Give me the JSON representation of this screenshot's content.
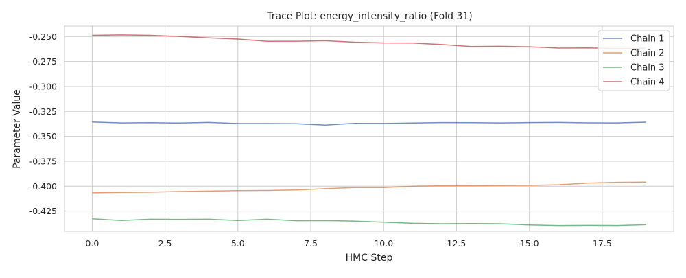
{
  "chart_data": {
    "type": "line",
    "title": "Trace Plot: energy_intensity_ratio (Fold 31)",
    "xlabel": "HMC Step",
    "ylabel": "Parameter Value",
    "xlim": [
      -0.95,
      19.95
    ],
    "ylim": [
      -0.4452,
      -0.2395
    ],
    "x_ticks": [
      0.0,
      2.5,
      5.0,
      7.5,
      10.0,
      12.5,
      15.0,
      17.5
    ],
    "x_tick_labels": [
      "0.0",
      "2.5",
      "5.0",
      "7.5",
      "10.0",
      "12.5",
      "15.0",
      "17.5"
    ],
    "y_ticks": [
      -0.25,
      -0.275,
      -0.3,
      -0.325,
      -0.35,
      -0.375,
      -0.4,
      -0.425
    ],
    "y_tick_labels": [
      "-0.250",
      "-0.275",
      "-0.300",
      "-0.325",
      "-0.350",
      "-0.375",
      "-0.400",
      "-0.425"
    ],
    "grid": true,
    "legend_position": "top-right",
    "x": [
      0,
      1,
      2,
      3,
      4,
      5,
      6,
      7,
      8,
      9,
      10,
      11,
      12,
      13,
      14,
      15,
      16,
      17,
      18,
      19
    ],
    "series": [
      {
        "name": "Chain 1",
        "color": "#4c72b0",
        "values": [
          -0.3356,
          -0.3366,
          -0.3363,
          -0.3367,
          -0.3361,
          -0.3372,
          -0.3372,
          -0.3374,
          -0.3387,
          -0.337,
          -0.3371,
          -0.3367,
          -0.3362,
          -0.3363,
          -0.3366,
          -0.3362,
          -0.3361,
          -0.3365,
          -0.3366,
          -0.3358
        ]
      },
      {
        "name": "Chain 2",
        "color": "#dd8452",
        "values": [
          -0.4066,
          -0.4061,
          -0.4059,
          -0.4053,
          -0.4049,
          -0.4044,
          -0.4043,
          -0.4037,
          -0.4025,
          -0.4013,
          -0.4014,
          -0.3999,
          -0.3996,
          -0.3995,
          -0.3993,
          -0.3991,
          -0.3985,
          -0.3969,
          -0.3961,
          -0.3958
        ]
      },
      {
        "name": "Chain 3",
        "color": "#55a868",
        "values": [
          -0.4326,
          -0.4344,
          -0.4331,
          -0.4332,
          -0.4331,
          -0.4343,
          -0.4331,
          -0.4346,
          -0.4345,
          -0.435,
          -0.4361,
          -0.4372,
          -0.4376,
          -0.4374,
          -0.4376,
          -0.4388,
          -0.4394,
          -0.4393,
          -0.4394,
          -0.4386
        ]
      },
      {
        "name": "Chain 4",
        "color": "#c44e52",
        "values": [
          -0.2488,
          -0.2484,
          -0.2488,
          -0.2499,
          -0.2513,
          -0.2526,
          -0.2548,
          -0.2547,
          -0.2542,
          -0.2557,
          -0.2564,
          -0.2565,
          -0.258,
          -0.26,
          -0.2597,
          -0.2602,
          -0.2615,
          -0.2614,
          -0.2619,
          -0.2618
        ]
      }
    ]
  }
}
